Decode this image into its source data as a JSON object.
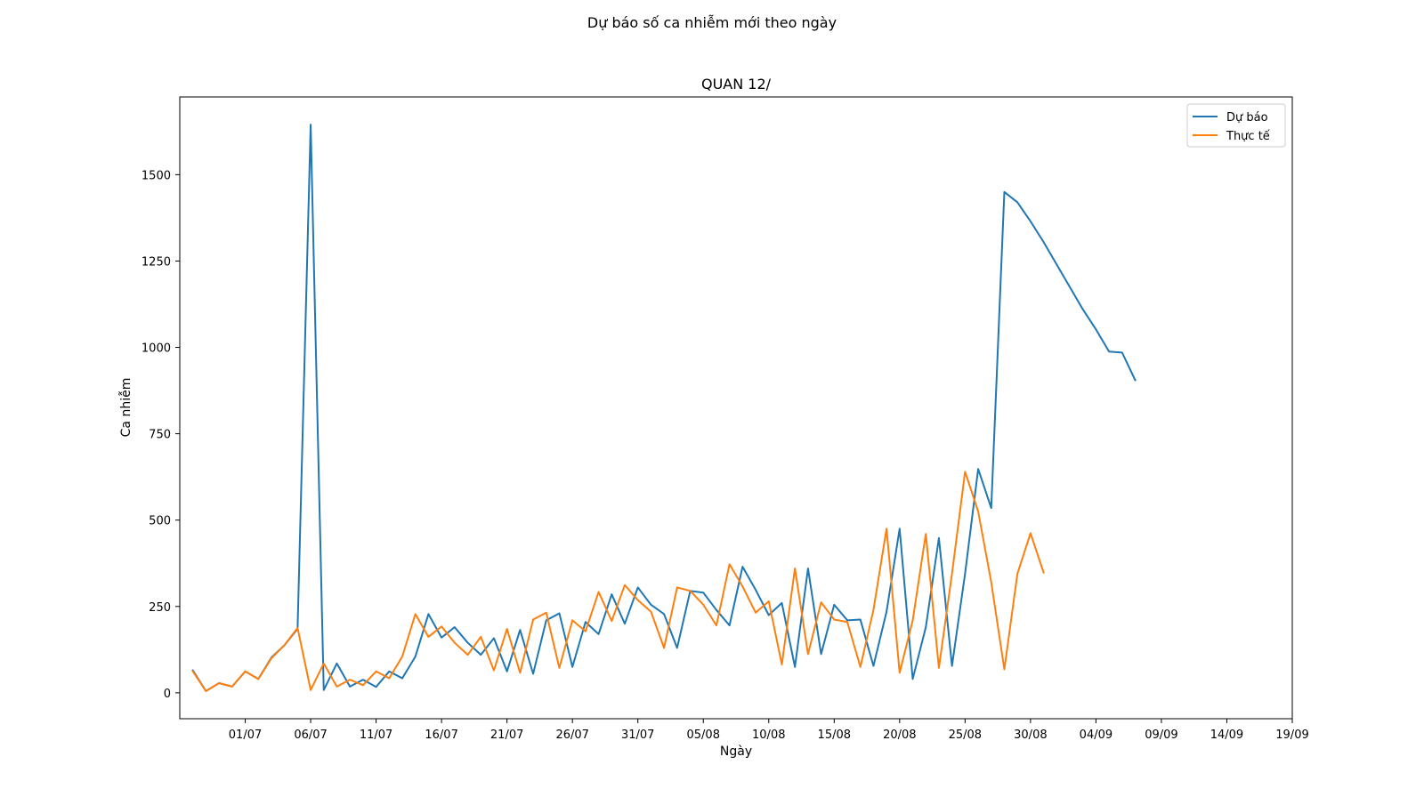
{
  "figure": {
    "suptitle": "Dự báo số ca nhiễm mới theo ngày"
  },
  "chart_data": {
    "type": "line",
    "title": "QUAN 12/",
    "xlabel": "Ngày",
    "ylabel": "Ca nhiễm",
    "x_start": "2021-06-27",
    "x_end": "2021-09-19",
    "xlim": [
      "2021-06-26",
      "2021-09-19"
    ],
    "ylim": [
      -75,
      1725
    ],
    "x_ticks": [
      "01/07",
      "06/07",
      "11/07",
      "16/07",
      "21/07",
      "26/07",
      "31/07",
      "05/08",
      "10/08",
      "15/08",
      "20/08",
      "25/08",
      "30/08",
      "04/09",
      "09/09",
      "14/09",
      "19/09"
    ],
    "y_ticks": [
      0,
      250,
      500,
      750,
      1000,
      1250,
      1500
    ],
    "grid": false,
    "legend_position": "top-right",
    "series": [
      {
        "name": "Dự báo",
        "color": "#1f77b4",
        "start": "2021-06-27",
        "values": [
          65,
          5,
          28,
          18,
          62,
          40,
          102,
          138,
          185,
          1645,
          8,
          85,
          18,
          38,
          17,
          62,
          42,
          105,
          228,
          160,
          190,
          145,
          110,
          158,
          62,
          182,
          55,
          210,
          230,
          75,
          205,
          170,
          285,
          200,
          305,
          255,
          228,
          130,
          295,
          290,
          240,
          195,
          365,
          298,
          225,
          260,
          75,
          360,
          112,
          255,
          210,
          212,
          78,
          235,
          475,
          40,
          190,
          448,
          78,
          345,
          648,
          535,
          1450,
          1420,
          1365,
          1305,
          1240,
          1175,
          1110,
          1052,
          988,
          985,
          905
        ]
      },
      {
        "name": "Thực tế",
        "color": "#ff7f0e",
        "start": "2021-06-27",
        "values": [
          62,
          5,
          28,
          18,
          62,
          40,
          100,
          138,
          188,
          8,
          85,
          18,
          38,
          22,
          62,
          42,
          105,
          228,
          162,
          192,
          145,
          110,
          162,
          65,
          185,
          58,
          212,
          232,
          72,
          210,
          178,
          292,
          208,
          312,
          268,
          235,
          130,
          305,
          295,
          255,
          195,
          372,
          308,
          232,
          265,
          82,
          360,
          112,
          262,
          212,
          205,
          75,
          240,
          475,
          58,
          210,
          460,
          72,
          345,
          640,
          525,
          320,
          68,
          345,
          462,
          348
        ]
      }
    ]
  }
}
